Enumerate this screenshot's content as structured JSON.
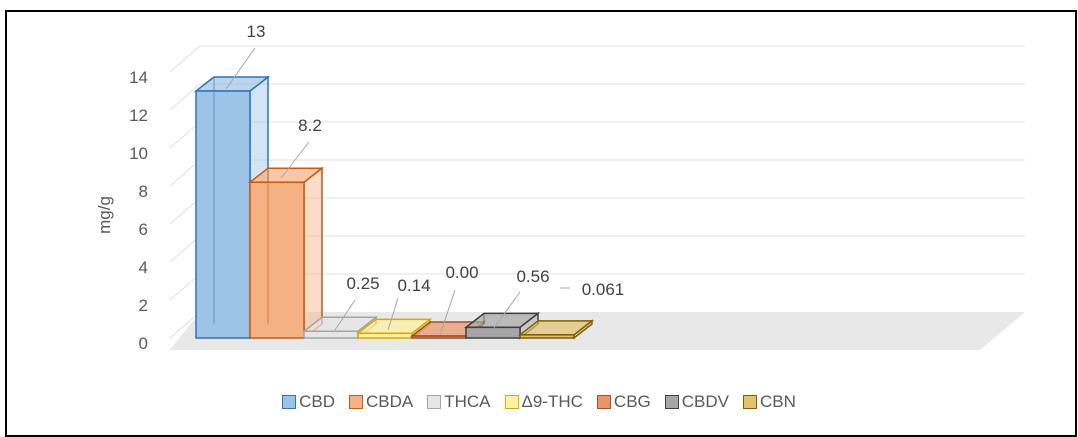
{
  "chart_data": {
    "type": "bar",
    "ylabel": "mg/g",
    "ylim": [
      0,
      14
    ],
    "yticks": [
      0,
      2,
      4,
      6,
      8,
      10,
      12,
      14
    ],
    "grid": true,
    "legend_position": "bottom",
    "style": "3d-clustered-column",
    "series": [
      {
        "name": "CBD",
        "value": 13,
        "label": "13",
        "color": "#9DC3E6",
        "edge": "#2E75B6"
      },
      {
        "name": "CBDA",
        "value": 8.2,
        "label": "8.2",
        "color": "#F4B183",
        "edge": "#C55A11"
      },
      {
        "name": "THCA",
        "value": 0.25,
        "label": "0.25",
        "color": "#E7E6E6",
        "edge": "#A5A5A5"
      },
      {
        "name": "Δ9-THC",
        "value": 0.14,
        "label": "0.14",
        "color": "#FFF2A0",
        "edge": "#D6A800"
      },
      {
        "name": "CBG",
        "value": 0.0,
        "label": "0.00",
        "color": "#E9946A",
        "edge": "#A0522D"
      },
      {
        "name": "CBDV",
        "value": 0.56,
        "label": "0.56",
        "color": "#A6A6A6",
        "edge": "#404040"
      },
      {
        "name": "CBN",
        "value": 0.061,
        "label": "0.061",
        "color": "#E2C270",
        "edge": "#7F6000"
      }
    ]
  }
}
